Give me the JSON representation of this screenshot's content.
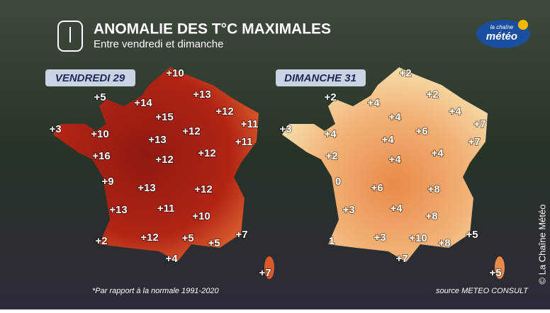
{
  "header": {
    "title": "ANOMALIE DES T°C MAXIMALES",
    "subtitle": "Entre vendredi et dimanche"
  },
  "logo": {
    "line1": "la chaîne",
    "line2": "météo"
  },
  "panels": [
    {
      "label": "VENDREDI 29",
      "values": [
        "+10",
        "+5",
        "+14",
        "+13",
        "+15",
        "+12",
        "+3",
        "+10",
        "+12",
        "+11",
        "+13",
        "+11",
        "+16",
        "+12",
        "+12",
        "+9",
        "+13",
        "+12",
        "+13",
        "+11",
        "+10",
        "+7",
        "+2",
        "+12",
        "+5",
        "+5",
        "+4",
        "+7"
      ]
    },
    {
      "label": "DIMANCHE 31",
      "values": [
        "+2",
        "+2",
        "+4",
        "+2",
        "+4",
        "+4",
        "+3",
        "+4",
        "+6",
        "+7",
        "+4",
        "+7",
        "+2",
        "+4",
        "+4",
        "0",
        "+6",
        "+8",
        "+3",
        "+4",
        "+8",
        "+5",
        "1",
        "+3",
        "+10",
        "+8",
        "+7",
        "+5"
      ]
    }
  ],
  "footnote": "*Par rapport à la normale 1991-2020",
  "source": "source METEO CONSULT",
  "copyright": "© La Chaîne Météo"
}
